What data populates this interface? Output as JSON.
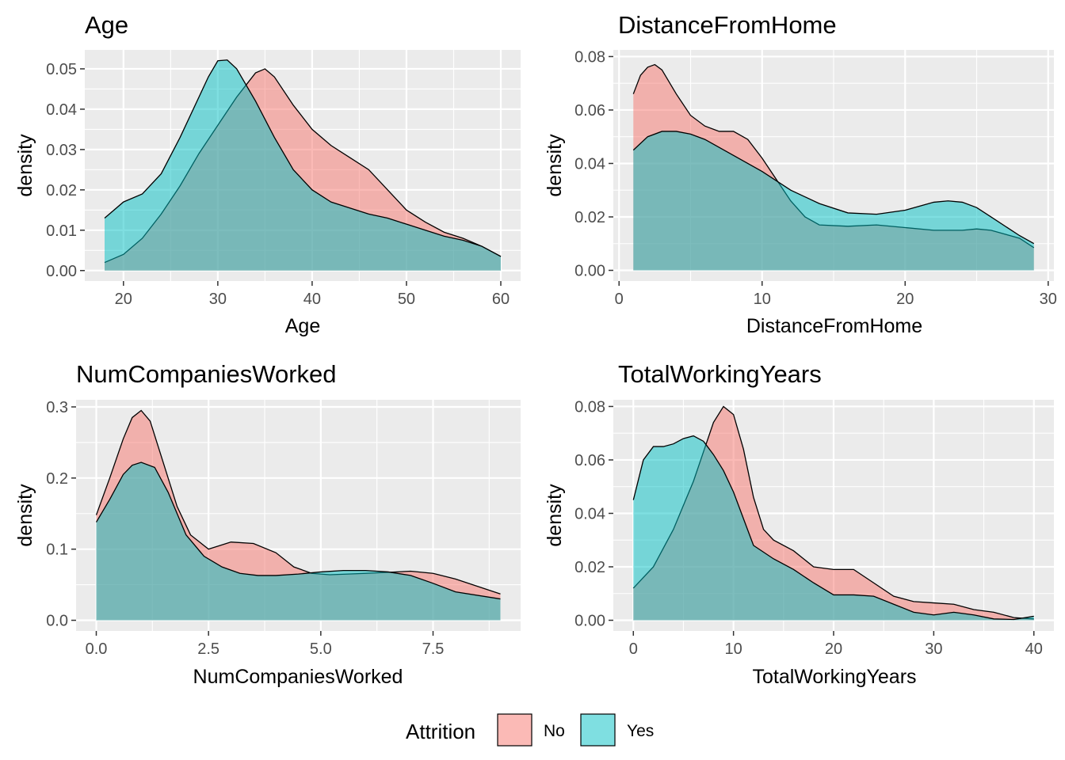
{
  "legend": {
    "title": "Attrition",
    "items": [
      {
        "label": "No",
        "color": "#F8766D"
      },
      {
        "label": "Yes",
        "color": "#00BFC4"
      }
    ]
  },
  "style": {
    "panel_background": "#EBEBEB",
    "grid_color": "#FFFFFF",
    "fill_opacity": 0.5,
    "outline_color": "#000000"
  },
  "chart_data": [
    {
      "type": "area",
      "title": "Age",
      "xlabel": "Age",
      "ylabel": "density",
      "xlim": [
        15.9,
        62.1
      ],
      "ylim": [
        -0.0026,
        0.0547
      ],
      "xticks": [
        20,
        30,
        40,
        50,
        60
      ],
      "xtick_labels": [
        "20",
        "30",
        "40",
        "50",
        "60"
      ],
      "yticks": [
        0.0,
        0.01,
        0.02,
        0.03,
        0.04,
        0.05
      ],
      "ytick_labels": [
        "0.00",
        "0.01",
        "0.02",
        "0.03",
        "0.04",
        "0.05"
      ],
      "series": [
        {
          "name": "No",
          "x": [
            18,
            20,
            22,
            24,
            26,
            28,
            30,
            32,
            34,
            35,
            36,
            38,
            40,
            42,
            44,
            46,
            48,
            50,
            52,
            54,
            56,
            58,
            60
          ],
          "y": [
            0.002,
            0.004,
            0.008,
            0.014,
            0.021,
            0.029,
            0.036,
            0.043,
            0.049,
            0.05,
            0.048,
            0.041,
            0.035,
            0.031,
            0.028,
            0.025,
            0.02,
            0.015,
            0.012,
            0.0095,
            0.008,
            0.006,
            0.0035
          ]
        },
        {
          "name": "Yes",
          "x": [
            18,
            20,
            22,
            24,
            26,
            28,
            29,
            30,
            31,
            32,
            34,
            36,
            38,
            40,
            42,
            44,
            46,
            48,
            50,
            52,
            54,
            56,
            58,
            60
          ],
          "y": [
            0.013,
            0.017,
            0.019,
            0.024,
            0.033,
            0.043,
            0.048,
            0.052,
            0.0522,
            0.05,
            0.042,
            0.033,
            0.025,
            0.02,
            0.017,
            0.0155,
            0.014,
            0.013,
            0.0115,
            0.01,
            0.0085,
            0.0075,
            0.006,
            0.0035
          ]
        }
      ]
    },
    {
      "type": "area",
      "title": "DistanceFromHome",
      "xlabel": "DistanceFromHome",
      "ylabel": "density",
      "xlim": [
        -0.4,
        30.4
      ],
      "ylim": [
        -0.004,
        0.0825
      ],
      "xticks": [
        0,
        10,
        20,
        30
      ],
      "xtick_labels": [
        "0",
        "10",
        "20",
        "30"
      ],
      "yticks": [
        0.0,
        0.02,
        0.04,
        0.06,
        0.08
      ],
      "ytick_labels": [
        "0.00",
        "0.02",
        "0.04",
        "0.06",
        "0.08"
      ],
      "series": [
        {
          "name": "No",
          "x": [
            1,
            1.5,
            2,
            2.5,
            3,
            4,
            5,
            6,
            7,
            8,
            9,
            10,
            11,
            12,
            13,
            14,
            16,
            18,
            20,
            22,
            24,
            25,
            26,
            28,
            29
          ],
          "y": [
            0.066,
            0.073,
            0.076,
            0.077,
            0.075,
            0.066,
            0.058,
            0.054,
            0.052,
            0.052,
            0.049,
            0.042,
            0.034,
            0.026,
            0.02,
            0.017,
            0.0165,
            0.017,
            0.016,
            0.015,
            0.015,
            0.0155,
            0.015,
            0.012,
            0.0085
          ]
        },
        {
          "name": "Yes",
          "x": [
            1,
            2,
            3,
            4,
            5,
            6,
            8,
            10,
            12,
            14,
            16,
            18,
            20,
            22,
            23,
            24,
            25,
            26,
            28,
            29
          ],
          "y": [
            0.045,
            0.05,
            0.052,
            0.052,
            0.051,
            0.049,
            0.043,
            0.037,
            0.03,
            0.025,
            0.0215,
            0.021,
            0.0225,
            0.0255,
            0.026,
            0.0255,
            0.0235,
            0.02,
            0.013,
            0.01
          ]
        }
      ]
    },
    {
      "type": "area",
      "title": "NumCompaniesWorked",
      "xlabel": "NumCompaniesWorked",
      "ylabel": "density",
      "xlim": [
        -0.45,
        9.45
      ],
      "ylim": [
        -0.015,
        0.31
      ],
      "xticks": [
        0.0,
        2.5,
        5.0,
        7.5
      ],
      "xtick_labels": [
        "0.0",
        "2.5",
        "5.0",
        "7.5"
      ],
      "yticks": [
        0.0,
        0.1,
        0.2,
        0.3
      ],
      "ytick_labels": [
        "0.0",
        "0.1",
        "0.2",
        "0.3"
      ],
      "series": [
        {
          "name": "No",
          "x": [
            0,
            0.3,
            0.6,
            0.8,
            1.0,
            1.2,
            1.5,
            1.8,
            2.1,
            2.5,
            3.0,
            3.5,
            4.0,
            4.4,
            4.8,
            5.2,
            6.0,
            7.0,
            7.5,
            8.0,
            9.0
          ],
          "y": [
            0.148,
            0.2,
            0.255,
            0.285,
            0.295,
            0.28,
            0.22,
            0.16,
            0.12,
            0.1,
            0.11,
            0.108,
            0.095,
            0.075,
            0.066,
            0.064,
            0.066,
            0.069,
            0.066,
            0.058,
            0.037
          ]
        },
        {
          "name": "Yes",
          "x": [
            0,
            0.3,
            0.6,
            0.8,
            1.0,
            1.3,
            1.6,
            2.0,
            2.4,
            2.8,
            3.2,
            3.6,
            4.0,
            4.5,
            5.0,
            5.5,
            6.0,
            6.5,
            7.0,
            7.5,
            8.0,
            9.0
          ],
          "y": [
            0.138,
            0.17,
            0.205,
            0.218,
            0.222,
            0.215,
            0.18,
            0.12,
            0.09,
            0.075,
            0.066,
            0.063,
            0.063,
            0.065,
            0.068,
            0.07,
            0.07,
            0.068,
            0.063,
            0.052,
            0.04,
            0.03
          ]
        }
      ]
    },
    {
      "type": "area",
      "title": "TotalWorkingYears",
      "xlabel": "TotalWorkingYears",
      "ylabel": "density",
      "xlim": [
        -2.0,
        42.0
      ],
      "ylim": [
        -0.004,
        0.0825
      ],
      "xticks": [
        0,
        10,
        20,
        30,
        40
      ],
      "xtick_labels": [
        "0",
        "10",
        "20",
        "30",
        "40"
      ],
      "yticks": [
        0.0,
        0.02,
        0.04,
        0.06,
        0.08
      ],
      "ytick_labels": [
        "0.00",
        "0.02",
        "0.04",
        "0.06",
        "0.08"
      ],
      "series": [
        {
          "name": "No",
          "x": [
            0,
            2,
            4,
            6,
            7,
            8,
            9,
            10,
            11,
            12,
            13,
            14,
            16,
            18,
            20,
            22,
            24,
            26,
            28,
            30,
            32,
            34,
            36,
            38,
            40
          ],
          "y": [
            0.012,
            0.02,
            0.034,
            0.052,
            0.063,
            0.074,
            0.08,
            0.077,
            0.064,
            0.046,
            0.034,
            0.03,
            0.026,
            0.02,
            0.019,
            0.019,
            0.014,
            0.009,
            0.007,
            0.0065,
            0.006,
            0.004,
            0.003,
            0.001,
            0.0005
          ]
        },
        {
          "name": "Yes",
          "x": [
            0,
            1,
            2,
            3,
            4,
            5,
            6,
            7,
            8,
            9,
            10,
            11,
            12,
            14,
            16,
            18,
            20,
            22,
            24,
            26,
            28,
            30,
            32,
            34,
            36,
            38,
            40
          ],
          "y": [
            0.045,
            0.06,
            0.065,
            0.065,
            0.066,
            0.068,
            0.069,
            0.067,
            0.062,
            0.056,
            0.048,
            0.038,
            0.028,
            0.023,
            0.019,
            0.014,
            0.0095,
            0.0095,
            0.009,
            0.006,
            0.003,
            0.002,
            0.003,
            0.002,
            0.0005,
            0.0003,
            0.0015
          ]
        }
      ]
    }
  ]
}
